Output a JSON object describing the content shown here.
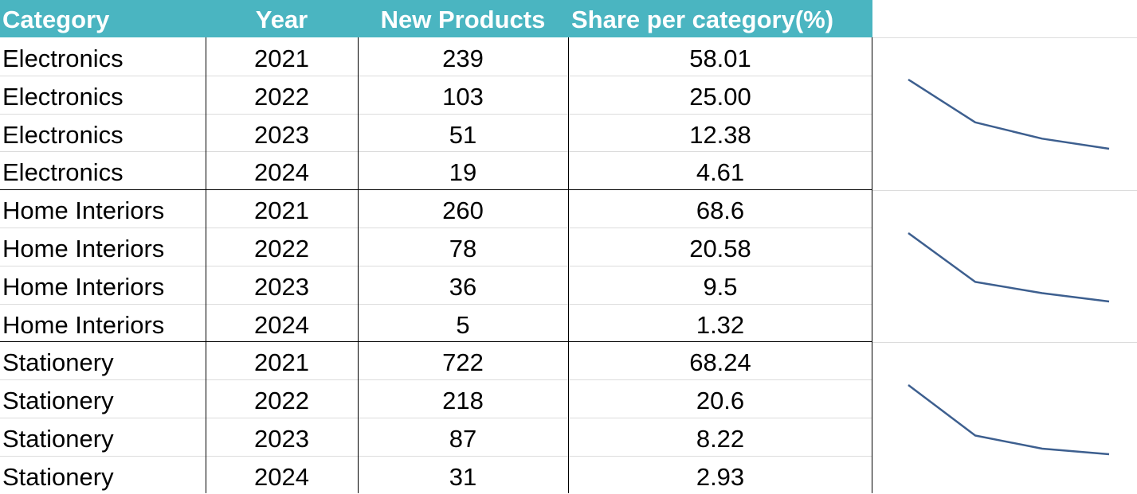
{
  "table": {
    "headers": [
      "Category",
      "Year",
      "New Products",
      "Share per category(%)"
    ],
    "rows": [
      [
        "Electronics",
        "2021",
        "239",
        "58.01"
      ],
      [
        "Electronics",
        "2022",
        "103",
        "25.00"
      ],
      [
        "Electronics",
        "2023",
        "51",
        "12.38"
      ],
      [
        "Electronics",
        "2024",
        "19",
        "4.61"
      ],
      [
        "Home Interiors",
        "2021",
        "260",
        "68.6"
      ],
      [
        "Home Interiors",
        "2022",
        "78",
        "20.58"
      ],
      [
        "Home Interiors",
        "2023",
        "36",
        "9.5"
      ],
      [
        "Home Interiors",
        "2024",
        "5",
        "1.32"
      ],
      [
        "Stationery",
        "2021",
        "722",
        "68.24"
      ],
      [
        "Stationery",
        "2022",
        "218",
        "20.6"
      ],
      [
        "Stationery",
        "2023",
        "87",
        "8.22"
      ],
      [
        "Stationery",
        "2024",
        "31",
        "2.93"
      ]
    ]
  },
  "chart_data": [
    {
      "type": "line",
      "title": "Electronics",
      "x": [
        "2021",
        "2022",
        "2023",
        "2024"
      ],
      "values": [
        58.01,
        25.0,
        12.38,
        4.61
      ]
    },
    {
      "type": "line",
      "title": "Home Interiors",
      "x": [
        "2021",
        "2022",
        "2023",
        "2024"
      ],
      "values": [
        68.6,
        20.58,
        9.5,
        1.32
      ]
    },
    {
      "type": "line",
      "title": "Stationery",
      "x": [
        "2021",
        "2022",
        "2023",
        "2024"
      ],
      "values": [
        68.24,
        20.6,
        8.22,
        2.93
      ]
    }
  ],
  "colors": {
    "header_bg": "#4ab5c1",
    "sparkline": "#3d5f8f"
  }
}
